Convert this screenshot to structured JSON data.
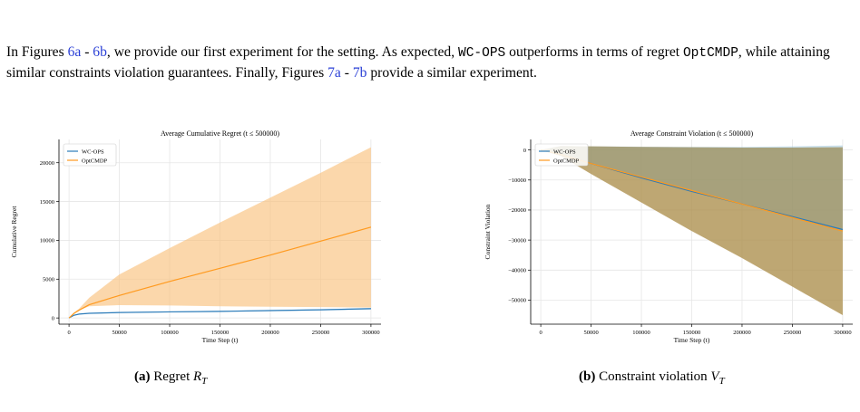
{
  "paragraph": {
    "t1": "In Figures ",
    "r1": "6a",
    "t2": " - ",
    "r2": "6b",
    "t3": ", we provide our first experiment for the setting. As expected, ",
    "m1": "WC-OPS",
    "t4": " outperforms in terms of regret ",
    "m2": "OptCMDP",
    "t5": ", while attaining similar constraints violation guarantees. Finally, Figures ",
    "r3": "7a",
    "t6": " - ",
    "r4": "7b",
    "t7": " provide a similar experiment."
  },
  "captions": [
    {
      "tag": "(a)",
      "text": "Regret ",
      "var": "R",
      "sub": "T"
    },
    {
      "tag": "(b)",
      "text": "Constraint violation ",
      "var": "V",
      "sub": "T"
    }
  ],
  "colors": {
    "wcops": "#2b7bb9",
    "optcmdp": "#ff9a1f",
    "band_opt": "#f9c27e",
    "band_wc": "#9fc6dd",
    "ref": "#2a3fd6"
  },
  "chart_data": [
    {
      "type": "line",
      "title": "Average Cumulative Regret (t ≤ 500000)",
      "xlabel": "Time Step (t)",
      "ylabel": "Cumulative Regret",
      "xlim": [
        -10000,
        310000
      ],
      "ylim": [
        -800,
        23000
      ],
      "xticks": [
        0,
        50000,
        100000,
        150000,
        200000,
        250000,
        300000
      ],
      "yticks": [
        0,
        5000,
        10000,
        15000,
        20000
      ],
      "grid": true,
      "legend": "top-left",
      "series": [
        {
          "name": "WC-OPS",
          "color": "#2b7bb9",
          "x": [
            0,
            5000,
            10000,
            20000,
            50000,
            100000,
            150000,
            200000,
            250000,
            300000
          ],
          "y": [
            0,
            350,
            500,
            600,
            700,
            780,
            850,
            950,
            1050,
            1200
          ],
          "band_upper": [
            0,
            380,
            540,
            650,
            760,
            850,
            920,
            1030,
            1130,
            1300
          ],
          "band_lower": [
            0,
            320,
            460,
            550,
            640,
            710,
            780,
            870,
            970,
            1100
          ]
        },
        {
          "name": "OptCMDP",
          "color": "#ff9a1f",
          "x": [
            0,
            5000,
            10000,
            20000,
            50000,
            100000,
            150000,
            200000,
            250000,
            300000
          ],
          "y": [
            0,
            600,
            1000,
            1700,
            2900,
            4700,
            6400,
            8100,
            9900,
            11700
          ],
          "band_upper": [
            0,
            700,
            1200,
            2600,
            5600,
            9000,
            12300,
            15500,
            18700,
            22000
          ],
          "band_lower": [
            0,
            500,
            1000,
            1500,
            1650,
            1600,
            1500,
            1450,
            1400,
            1350
          ]
        }
      ]
    },
    {
      "type": "line",
      "title": "Average Constraint Violation (t ≤ 500000)",
      "xlabel": "Time Step (t)",
      "ylabel": "Constraint Violation",
      "xlim": [
        -10000,
        310000
      ],
      "ylim": [
        -58000,
        3500
      ],
      "xticks": [
        0,
        50000,
        100000,
        150000,
        200000,
        250000,
        300000
      ],
      "yticks": [
        0,
        -10000,
        -20000,
        -30000,
        -40000,
        -50000
      ],
      "grid": true,
      "legend": "top-left",
      "series": [
        {
          "name": "WC-OPS",
          "color": "#2b7bb9",
          "x": [
            0,
            20000,
            50000,
            100000,
            150000,
            200000,
            250000,
            300000
          ],
          "y": [
            0,
            -1500,
            -4500,
            -9300,
            -13800,
            -18000,
            -22200,
            -26500
          ],
          "band_upper": [
            0,
            1300,
            1200,
            1100,
            1000,
            1000,
            1200,
            1500
          ],
          "band_lower": [
            0,
            -1500,
            -4500,
            -9300,
            -13800,
            -18000,
            -22200,
            -26500
          ]
        },
        {
          "name": "OptCMDP",
          "color": "#ff9a1f",
          "x": [
            0,
            20000,
            50000,
            100000,
            150000,
            200000,
            250000,
            300000
          ],
          "y": [
            0,
            -1500,
            -4500,
            -9000,
            -13500,
            -18000,
            -22500,
            -27000
          ],
          "band_upper": [
            0,
            1300,
            1200,
            1000,
            900,
            800,
            800,
            900
          ],
          "band_lower": [
            0,
            -2000,
            -8000,
            -17500,
            -27000,
            -36000,
            -45500,
            -55000
          ]
        }
      ]
    }
  ]
}
